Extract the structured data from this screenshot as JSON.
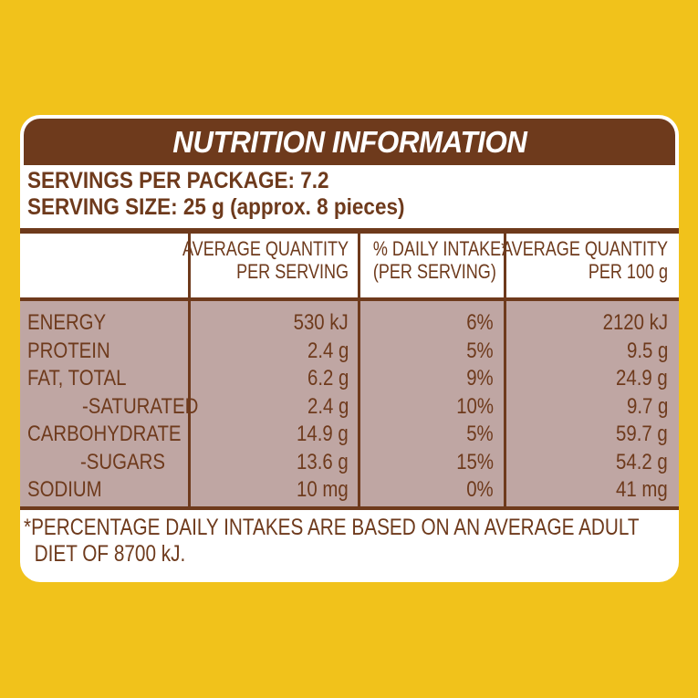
{
  "title": "NUTRITION INFORMATION",
  "servings_per_package": "SERVINGS PER PACKAGE: 7.2",
  "serving_size": "SERVING SIZE: 25 g (approx. 8 pieces)",
  "columns": {
    "per_serving": [
      "AVERAGE QUANTITY",
      "PER SERVING"
    ],
    "daily_intake": [
      "% DAILY INTAKE*",
      "(PER SERVING)"
    ],
    "per_100g": [
      "AVERAGE QUANTITY",
      "PER 100 g"
    ]
  },
  "rows": [
    {
      "label": "ENERGY",
      "per_serving": "530 kJ",
      "daily_intake": "6%",
      "per_100g": "2120 kJ"
    },
    {
      "label": "PROTEIN",
      "per_serving": "2.4 g",
      "daily_intake": "5%",
      "per_100g": "9.5 g"
    },
    {
      "label": "FAT, TOTAL",
      "per_serving": "6.2 g",
      "daily_intake": "9%",
      "per_100g": "24.9 g"
    },
    {
      "label": "-SATURATED",
      "per_serving": "2.4 g",
      "daily_intake": "10%",
      "per_100g": "9.7 g"
    },
    {
      "label": "CARBOHYDRATE",
      "per_serving": "14.9 g",
      "daily_intake": "5%",
      "per_100g": "59.7 g"
    },
    {
      "label": "-SUGARS",
      "per_serving": "13.6 g",
      "daily_intake": "15%",
      "per_100g": "54.2 g"
    },
    {
      "label": "SODIUM",
      "per_serving": "10 mg",
      "daily_intake": "0%",
      "per_100g": "41 mg"
    }
  ],
  "footnote_line1": "*PERCENTAGE DAILY INTAKES ARE BASED ON AN AVERAGE ADULT",
  "footnote_line2": "DIET OF 8700 kJ.",
  "colors": {
    "background": "#f1c21b",
    "brown": "#6e3a1c",
    "row_fill": "#bfa6a3",
    "panel": "#ffffff"
  }
}
